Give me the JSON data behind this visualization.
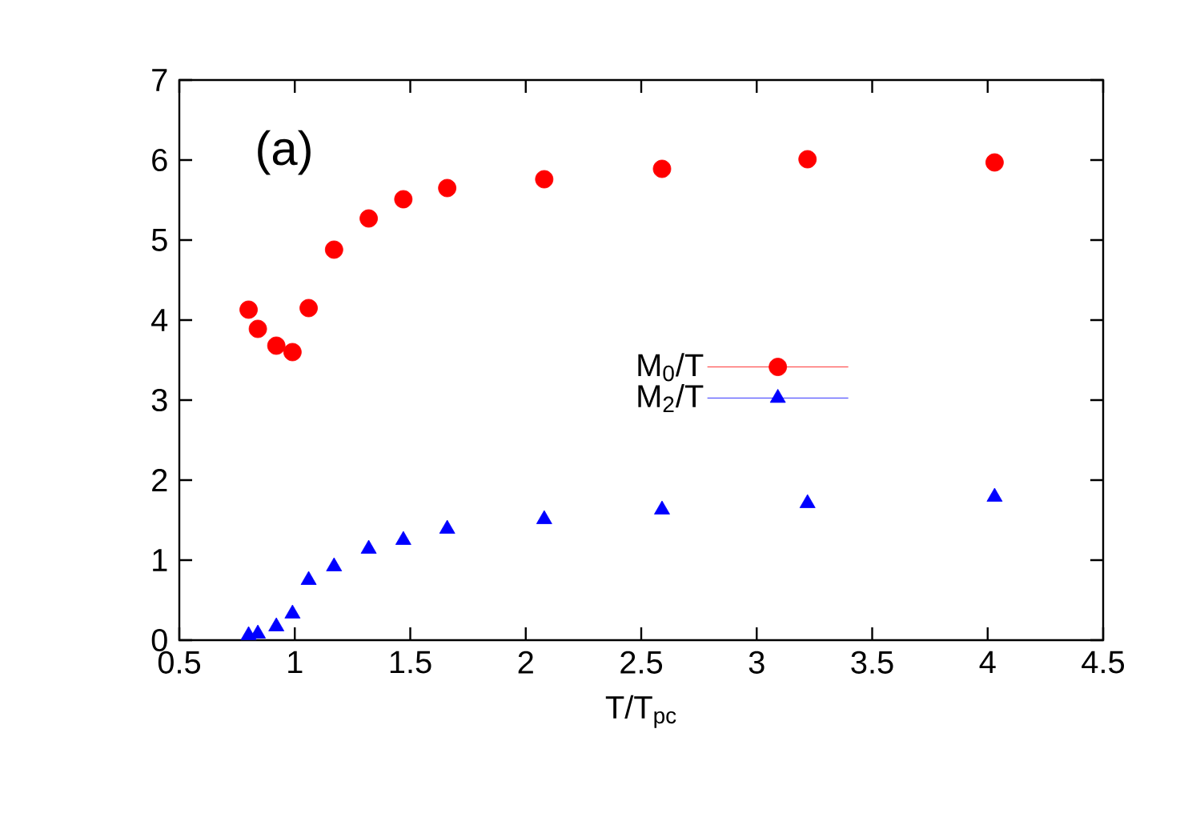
{
  "chart_data": {
    "type": "scatter",
    "xlabel": "T/T$_{pc}$",
    "annotations": [
      "(a)"
    ],
    "x": [
      0.8,
      0.84,
      0.92,
      0.99,
      1.06,
      1.17,
      1.32,
      1.47,
      1.66,
      2.08,
      2.59,
      3.22,
      4.03
    ],
    "series": [
      {
        "name": "M$_{0}$/T",
        "color": "#ff0000",
        "marker": "circle",
        "values": [
          4.13,
          3.89,
          3.68,
          3.6,
          4.15,
          4.88,
          5.27,
          5.51,
          5.65,
          5.76,
          5.89,
          6.01,
          5.97
        ]
      },
      {
        "name": "M$_{2}$/T",
        "color": "#0000ff",
        "marker": "triangle",
        "values": [
          0.06,
          0.08,
          0.17,
          0.33,
          0.75,
          0.92,
          1.14,
          1.25,
          1.39,
          1.51,
          1.63,
          1.71,
          1.79
        ]
      }
    ],
    "xlim": [
      0.5,
      4.5
    ],
    "xticks": [
      0.5,
      1,
      1.5,
      2,
      2.5,
      3,
      3.5,
      4,
      4.5
    ],
    "ylim": [
      0,
      7
    ],
    "yticks": [
      0,
      1,
      2,
      3,
      4,
      5,
      6,
      7
    ],
    "legend": "right",
    "grid": false
  }
}
